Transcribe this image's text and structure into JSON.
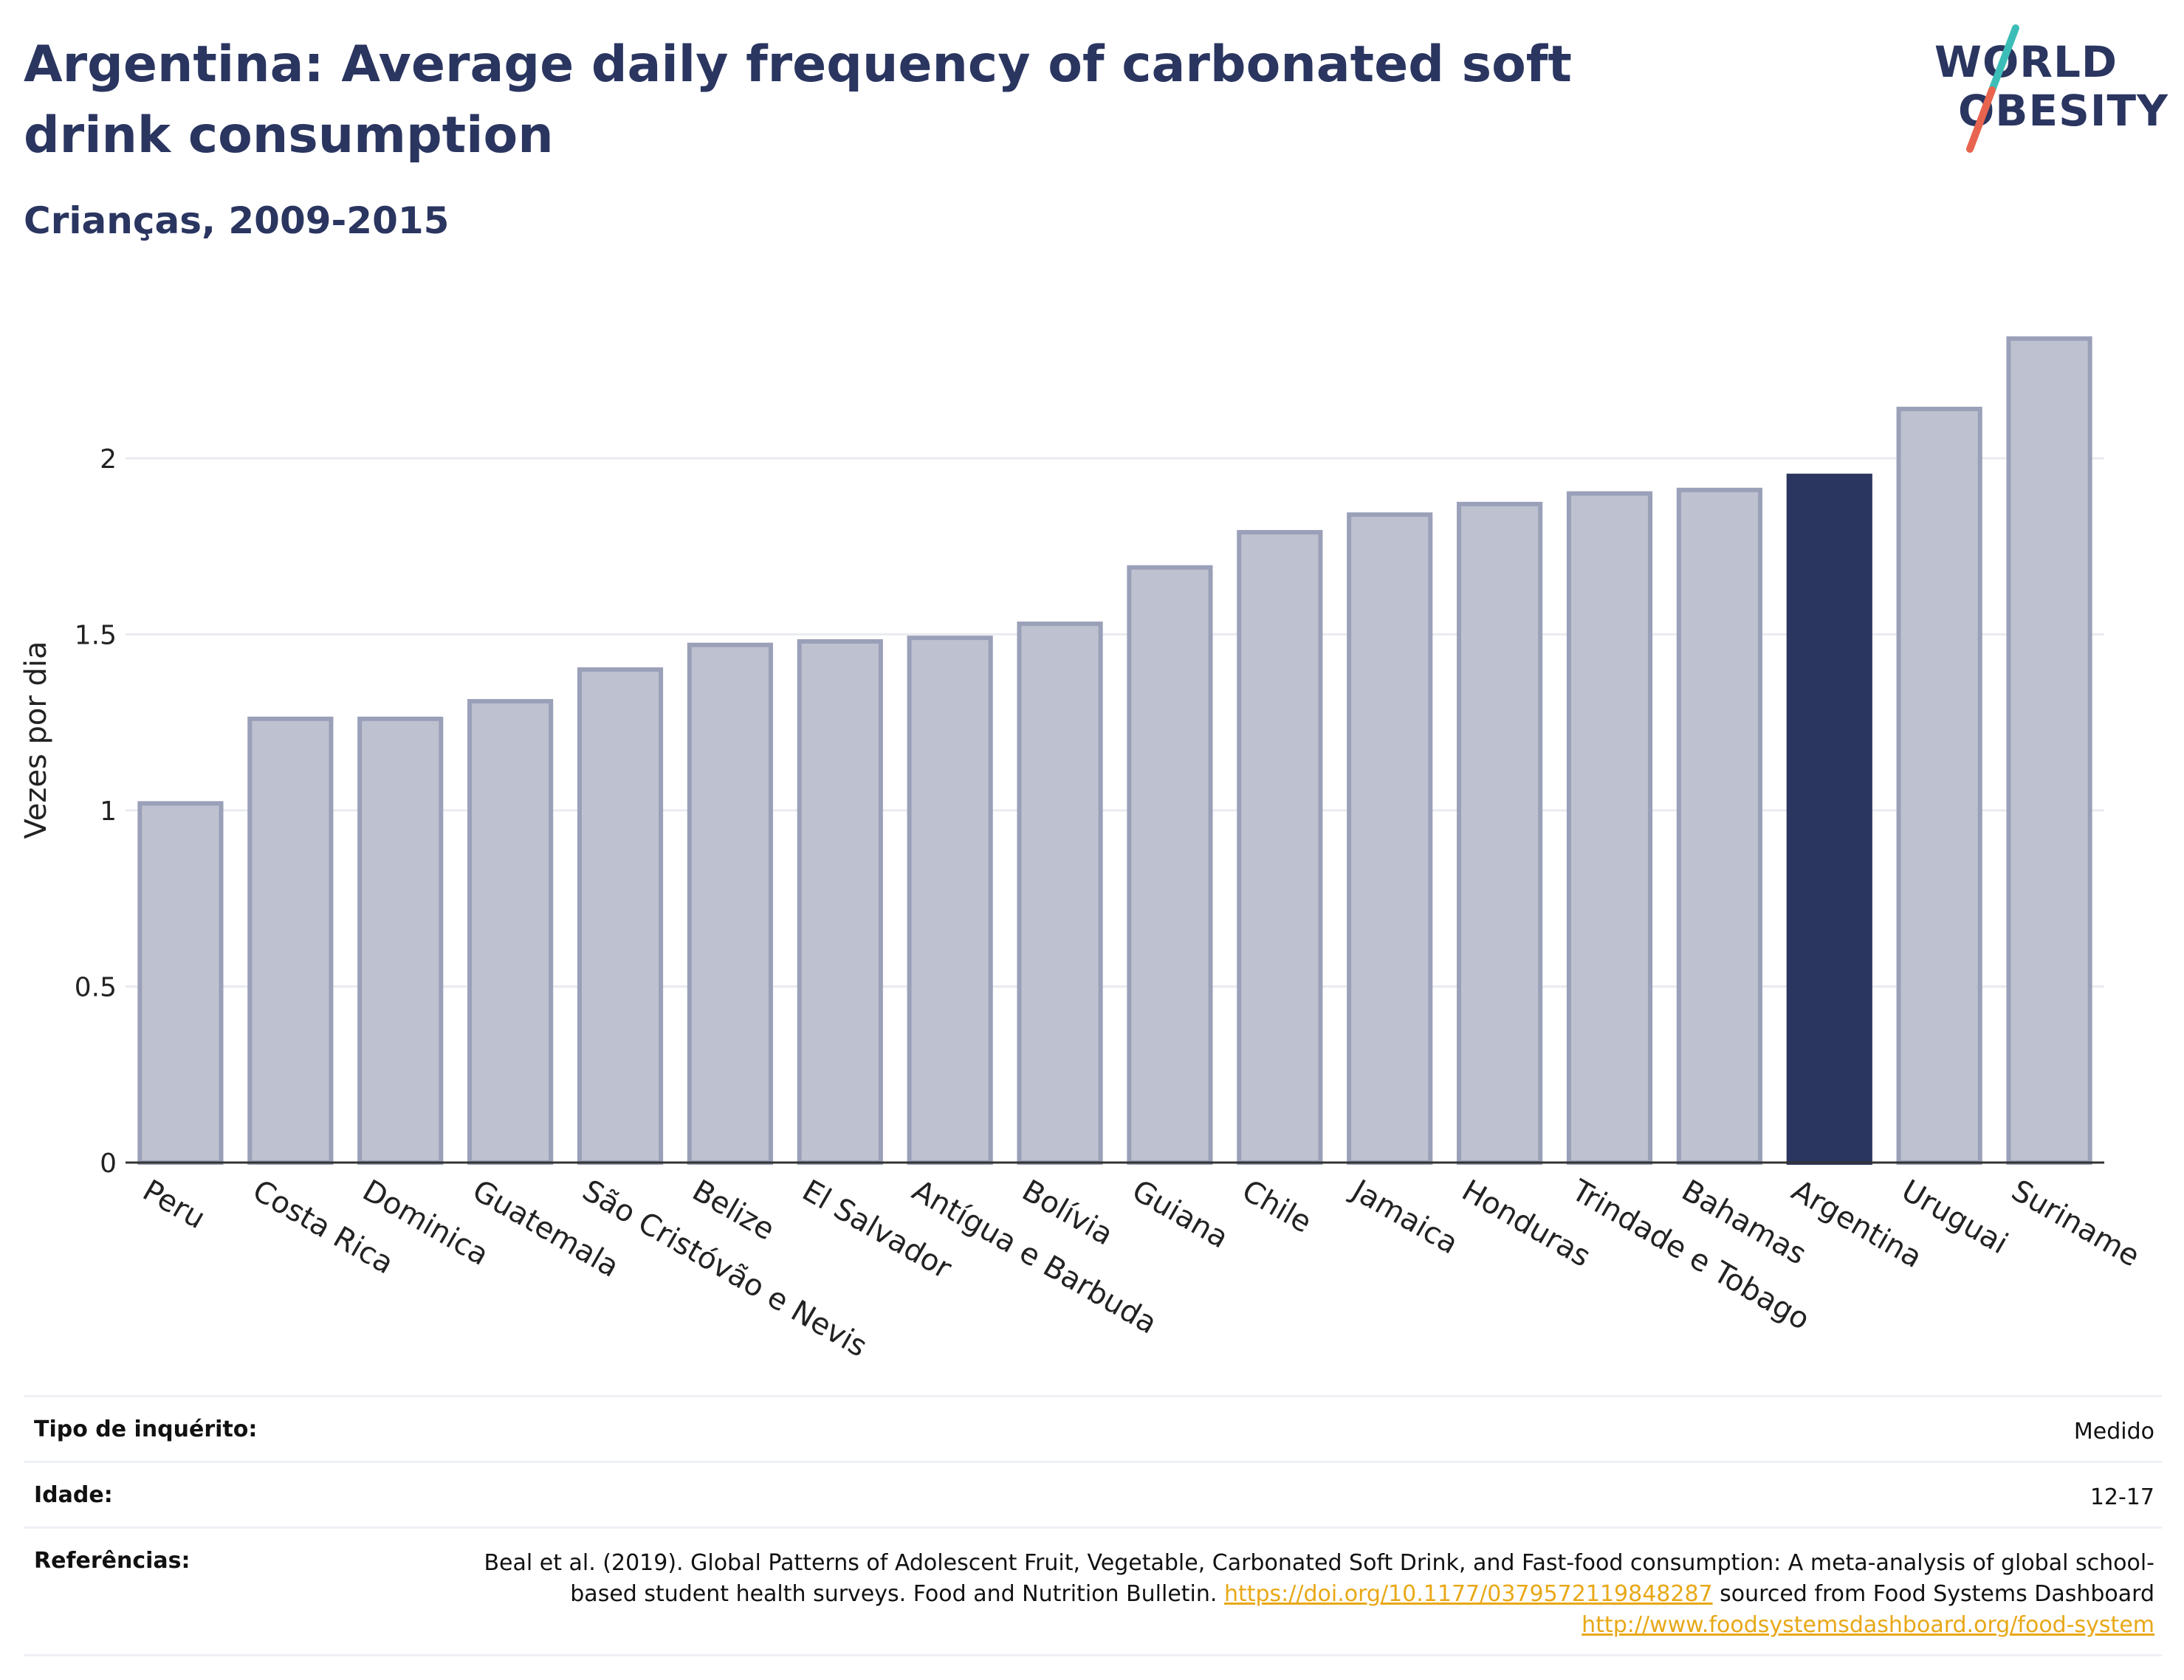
{
  "header": {
    "title": "Argentina: Average daily frequency of carbonated soft drink consumption",
    "subtitle": "Crianças, 2009-2015"
  },
  "logo": {
    "line1": "WORLD",
    "line2": "OBESITY",
    "accent_teal": "#3dbdb7",
    "accent_red": "#e8644f"
  },
  "colors": {
    "bar": "#bec1cf",
    "bar_edge": "#9aa0b8",
    "highlight": "#2a3560",
    "grid": "#e9ebf0"
  },
  "chart_data": {
    "type": "bar",
    "ylabel": "Vezes por dia",
    "xlabel": "",
    "ylim": [
      0,
      2.4
    ],
    "yticks": [
      0,
      0.5,
      1,
      1.5,
      2
    ],
    "ytick_labels": [
      "0",
      "0.5",
      "1",
      "1.5",
      "2"
    ],
    "grid": true,
    "highlight": "Argentina",
    "categories": [
      "Peru",
      "Costa Rica",
      "Dominica",
      "Guatemala",
      "São Cristóvão e Nevis",
      "Belize",
      "El Salvador",
      "Antígua e Barbuda",
      "Bolívia",
      "Guiana",
      "Chile",
      "Jamaica",
      "Honduras",
      "Trindade e Tobago",
      "Bahamas",
      "Argentina",
      "Uruguai",
      "Suriname"
    ],
    "values": [
      1.02,
      1.26,
      1.26,
      1.31,
      1.4,
      1.47,
      1.48,
      1.49,
      1.53,
      1.69,
      1.79,
      1.84,
      1.87,
      1.9,
      1.91,
      1.95,
      2.14,
      2.34
    ]
  },
  "meta": {
    "survey_label": "Tipo de inquérito:",
    "survey_value": "Medido",
    "age_label": "Idade:",
    "age_value": "12-17",
    "ref_label": "Referências:",
    "ref_text_1": "Beal et al. (2019). Global Patterns of Adolescent Fruit, Vegetable, Carbonated Soft Drink, and Fast-food consumption: A meta-analysis of global school-based student health surveys. Food and Nutrition Bulletin. ",
    "ref_link_1": "https://doi.org/10.1177/0379572119848287",
    "ref_text_2": " sourced from Food Systems Dashboard ",
    "ref_link_2": "http://www.foodsystemsdashboard.org/food-system"
  }
}
